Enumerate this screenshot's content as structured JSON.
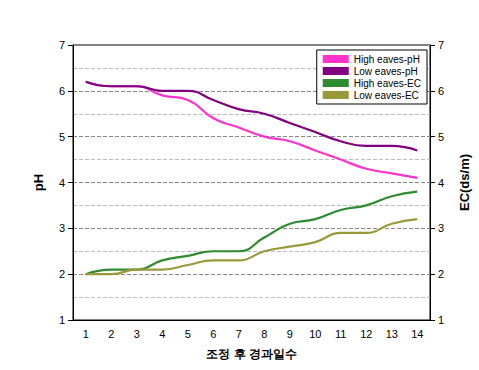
{
  "chart_data": {
    "type": "line",
    "x_label": "조정 후 경과일수",
    "y_label": "pH",
    "y2_label": "EC(ds/m)",
    "categories": [
      1,
      2,
      3,
      4,
      5,
      6,
      7,
      8,
      9,
      10,
      11,
      12,
      13,
      14
    ],
    "series": [
      {
        "name": "High eaves-pH",
        "color": "#ff33cc",
        "axis": "y",
        "values": [
          6.2,
          6.1,
          6.1,
          5.9,
          5.8,
          5.4,
          5.2,
          5.0,
          4.9,
          4.7,
          4.5,
          4.3,
          4.2,
          4.1
        ]
      },
      {
        "name": "Low eaves-pH",
        "color": "#800080",
        "axis": "y",
        "values": [
          6.2,
          6.1,
          6.1,
          6.0,
          6.0,
          5.8,
          5.6,
          5.5,
          5.3,
          5.1,
          4.9,
          4.8,
          4.8,
          4.7
        ]
      },
      {
        "name": "High eaves-EC",
        "color": "#2e8b2e",
        "axis": "y2",
        "values": [
          2.0,
          2.1,
          2.1,
          2.3,
          2.4,
          2.5,
          2.5,
          2.8,
          3.1,
          3.2,
          3.4,
          3.5,
          3.7,
          3.8
        ]
      },
      {
        "name": "Low eaves-EC",
        "color": "#99993a",
        "axis": "y2",
        "values": [
          2.0,
          2.0,
          2.1,
          2.1,
          2.2,
          2.3,
          2.3,
          2.5,
          2.6,
          2.7,
          2.9,
          2.9,
          3.1,
          3.2
        ]
      }
    ],
    "ylim": [
      1,
      7
    ],
    "yticks": [
      1,
      2,
      3,
      4,
      5,
      6,
      7
    ],
    "y2lim": [
      1,
      7
    ],
    "y2ticks": [
      1,
      2,
      3,
      4,
      5,
      6,
      7
    ],
    "grid": true,
    "legend": "upper right",
    "line_style": "solid"
  }
}
